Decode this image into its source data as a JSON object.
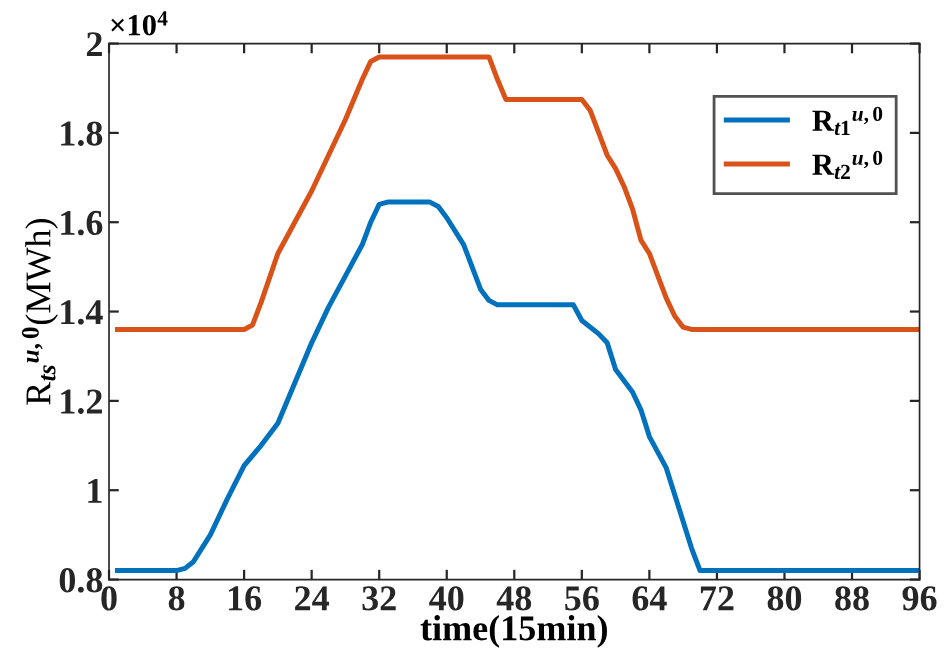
{
  "chart_data": {
    "type": "line",
    "xlabel": "time(15min)",
    "ylabel": "R$_{ts}$$^{u,0}$(MWh)",
    "annotations": [
      "×10$^{4}$"
    ],
    "xlim": [
      0,
      96
    ],
    "xticks": [
      0,
      8,
      16,
      24,
      32,
      40,
      48,
      56,
      64,
      72,
      80,
      88,
      96
    ],
    "ylim": [
      0.8,
      2
    ],
    "yticks": [
      0.8,
      1,
      1.2,
      1.4,
      1.6,
      1.8,
      2
    ],
    "grid": false,
    "legend": "top right",
    "line_style": "solid",
    "marker": "none",
    "series": [
      {
        "name": "R$_{t1}$$^{u,0}$",
        "color": "#0072bd",
        "x": [
          1,
          8,
          9,
          10,
          12,
          14,
          16,
          18,
          20,
          22,
          24,
          26,
          28,
          30,
          31,
          32,
          33,
          38,
          39,
          40,
          42,
          44,
          45,
          46,
          55,
          56,
          58,
          59,
          60,
          62,
          63,
          64,
          66,
          67,
          68,
          69,
          70,
          96
        ],
        "values": [
          0.82,
          0.82,
          0.825,
          0.84,
          0.9,
          0.98,
          1.055,
          1.1,
          1.15,
          1.24,
          1.33,
          1.41,
          1.48,
          1.55,
          1.6,
          1.64,
          1.645,
          1.645,
          1.635,
          1.61,
          1.55,
          1.45,
          1.425,
          1.415,
          1.415,
          1.38,
          1.35,
          1.33,
          1.27,
          1.22,
          1.18,
          1.12,
          1.05,
          0.99,
          0.93,
          0.87,
          0.82,
          0.82
        ]
      },
      {
        "name": "R$_{t2}$$^{u,0}$",
        "color": "#d95319",
        "x": [
          1,
          16,
          17,
          18,
          20,
          22,
          24,
          26,
          28,
          30,
          31,
          32,
          45,
          46,
          47,
          56,
          57,
          58,
          59,
          60,
          61,
          62,
          63,
          64,
          65,
          66,
          67,
          68,
          69,
          96
        ],
        "values": [
          1.36,
          1.36,
          1.37,
          1.42,
          1.53,
          1.6,
          1.67,
          1.75,
          1.83,
          1.92,
          1.96,
          1.97,
          1.97,
          1.92,
          1.875,
          1.875,
          1.85,
          1.8,
          1.75,
          1.72,
          1.68,
          1.63,
          1.56,
          1.53,
          1.48,
          1.43,
          1.39,
          1.365,
          1.36,
          1.36
        ]
      }
    ]
  }
}
